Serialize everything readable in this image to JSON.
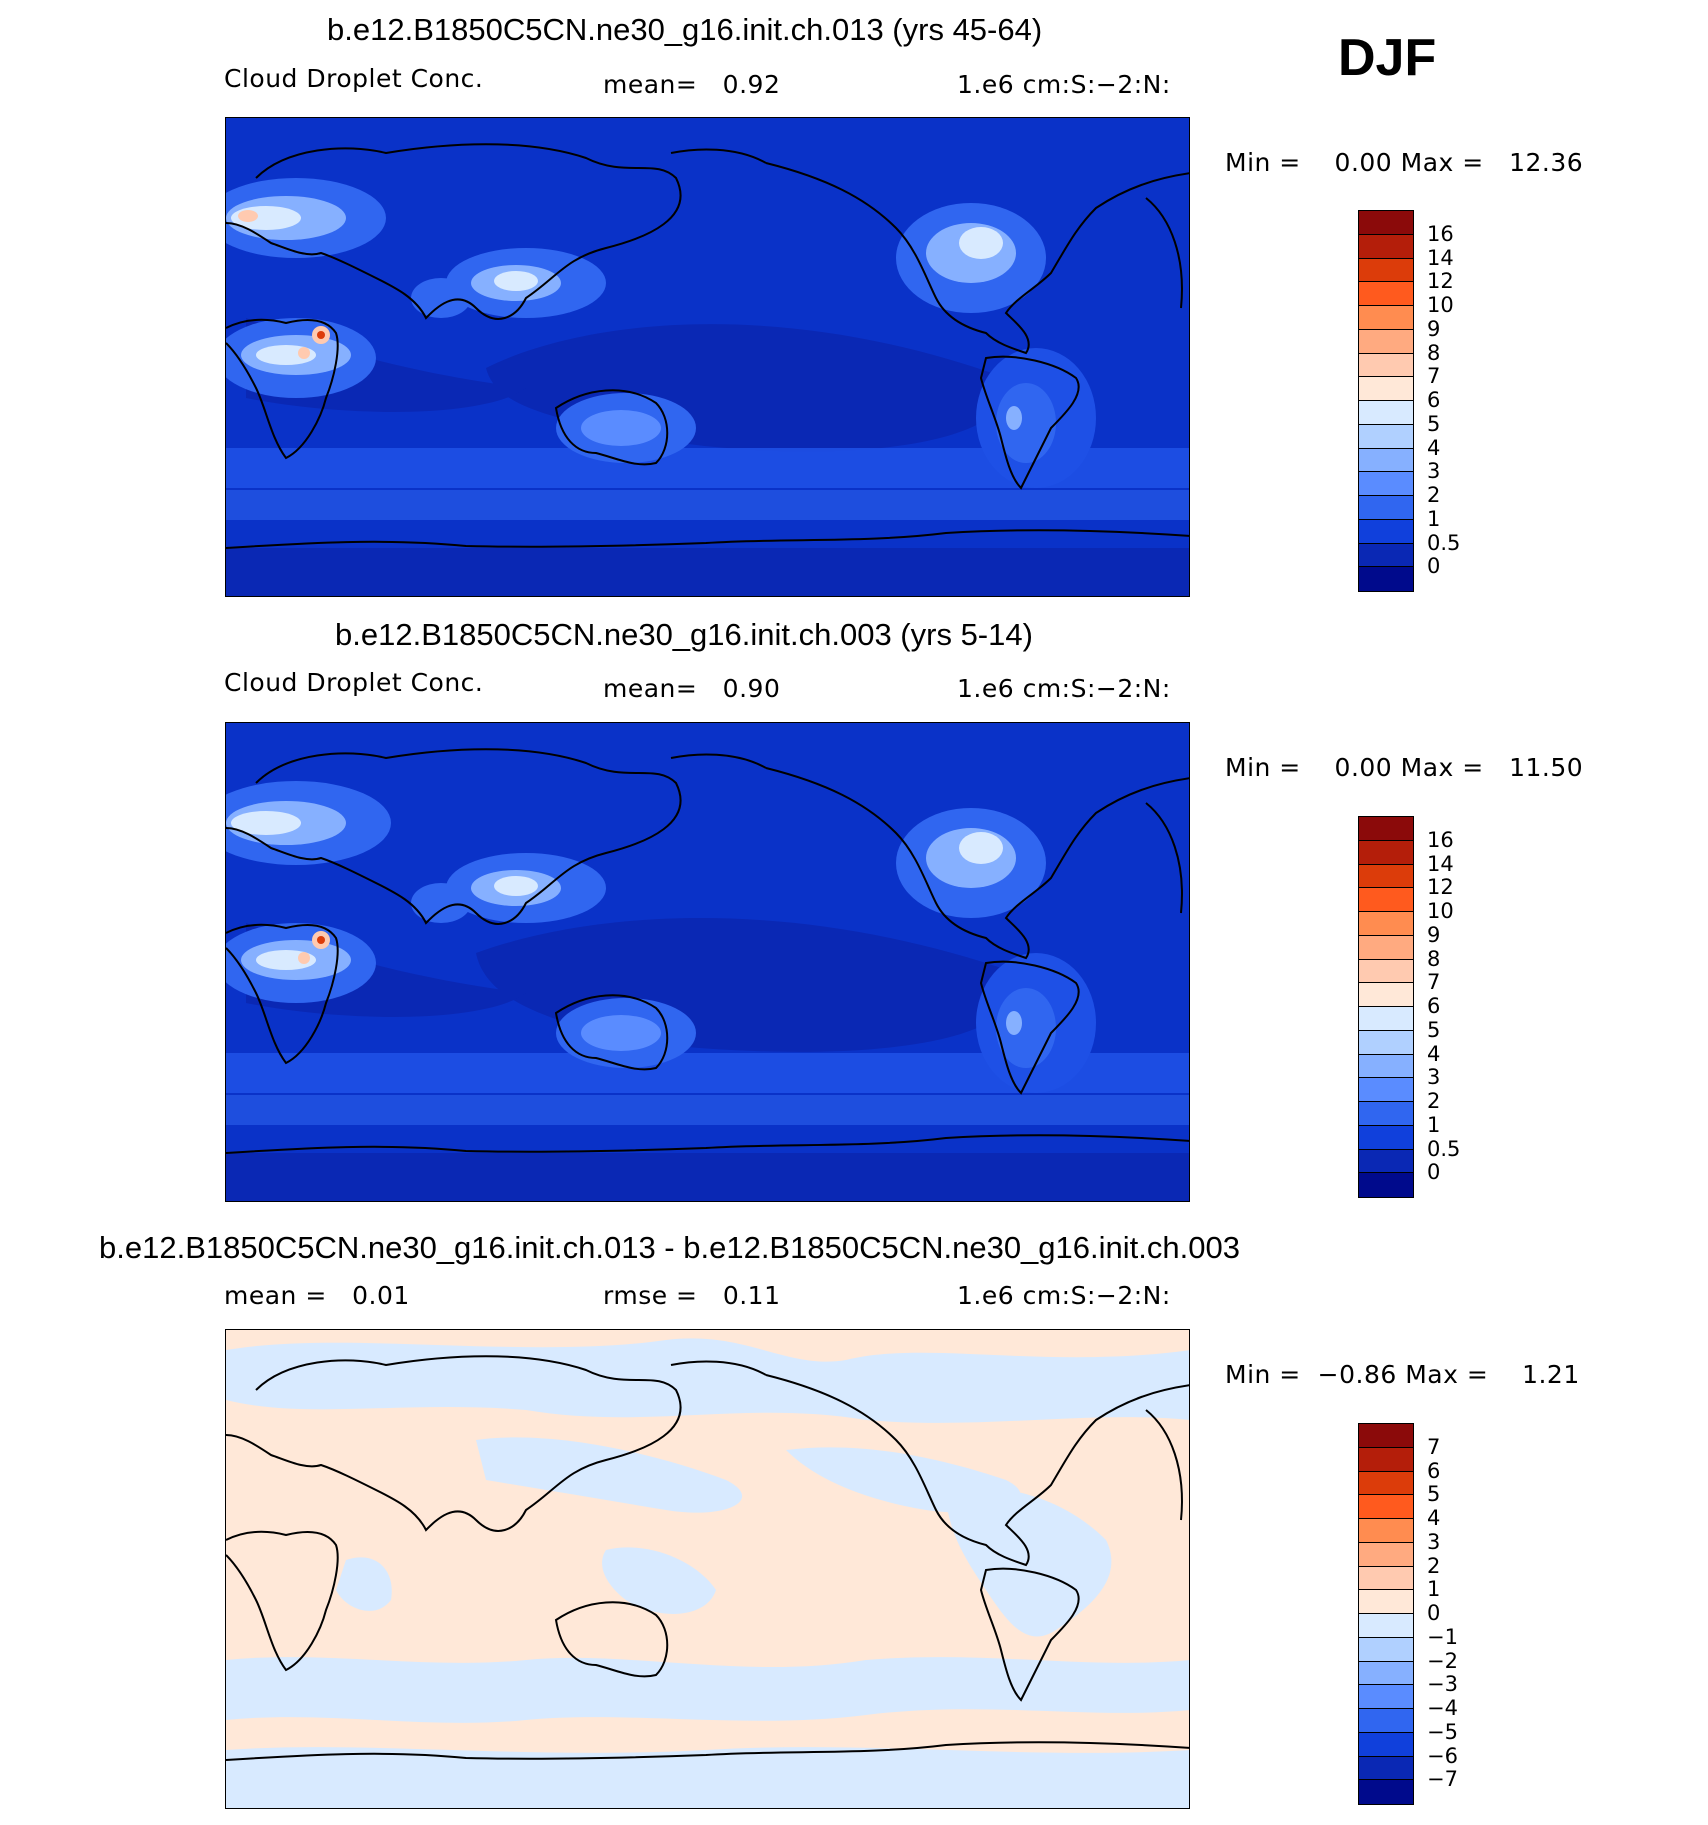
{
  "season": "DJF",
  "panels": [
    {
      "title": "b.e12.B1850C5CN.ne30_g16.init.ch.013 (yrs 45-64)",
      "left_label": "Cloud Droplet Conc.",
      "mid_label": "mean=   0.92",
      "units": "1.e6 cm:S:−2:N:",
      "minmax": "Min =    0.00 Max =   12.36",
      "colorbar_labels": [
        "16",
        "14",
        "12",
        "10",
        "9",
        "8",
        "7",
        "6",
        "5",
        "4",
        "3",
        "2",
        "1",
        "0.5",
        "0"
      ]
    },
    {
      "title": "b.e12.B1850C5CN.ne30_g16.init.ch.003 (yrs 5-14)",
      "left_label": "Cloud Droplet Conc.",
      "mid_label": "mean=   0.90",
      "units": "1.e6 cm:S:−2:N:",
      "minmax": "Min =    0.00 Max =   11.50",
      "colorbar_labels": [
        "16",
        "14",
        "12",
        "10",
        "9",
        "8",
        "7",
        "6",
        "5",
        "4",
        "3",
        "2",
        "1",
        "0.5",
        "0"
      ]
    },
    {
      "title": "b.e12.B1850C5CN.ne30_g16.init.ch.013 - b.e12.B1850C5CN.ne30_g16.init.ch.003",
      "left_label": "mean =   0.01",
      "mid_label": "rmse =   0.11",
      "units": "1.e6 cm:S:−2:N:",
      "minmax": "Min =  −0.86 Max =    1.21",
      "colorbar_labels": [
        "7",
        "6",
        "5",
        "4",
        "3",
        "2",
        "1",
        "0",
        "−1",
        "−2",
        "−3",
        "−4",
        "−5",
        "−6",
        "−7"
      ]
    }
  ],
  "colors": {
    "abs_scale": [
      "#8b0a0a",
      "#b41e0a",
      "#dc3c0a",
      "#ff5a1e",
      "#ff8c50",
      "#ffaa80",
      "#ffcab0",
      "#ffe8d8",
      "#d8eaff",
      "#b0d0ff",
      "#86b0ff",
      "#5a8cff",
      "#3066f0",
      "#1040dc",
      "#0a28b4",
      "#000a8c"
    ],
    "diff_scale": [
      "#8b0a0a",
      "#b41e0a",
      "#dc3c0a",
      "#ff5a1e",
      "#ff8c50",
      "#ffaa80",
      "#ffcab0",
      "#ffe8d8",
      "#d8eaff",
      "#b0d0ff",
      "#86b0ff",
      "#5a8cff",
      "#3066f0",
      "#1040dc",
      "#0a28b4",
      "#000a8c"
    ]
  }
}
